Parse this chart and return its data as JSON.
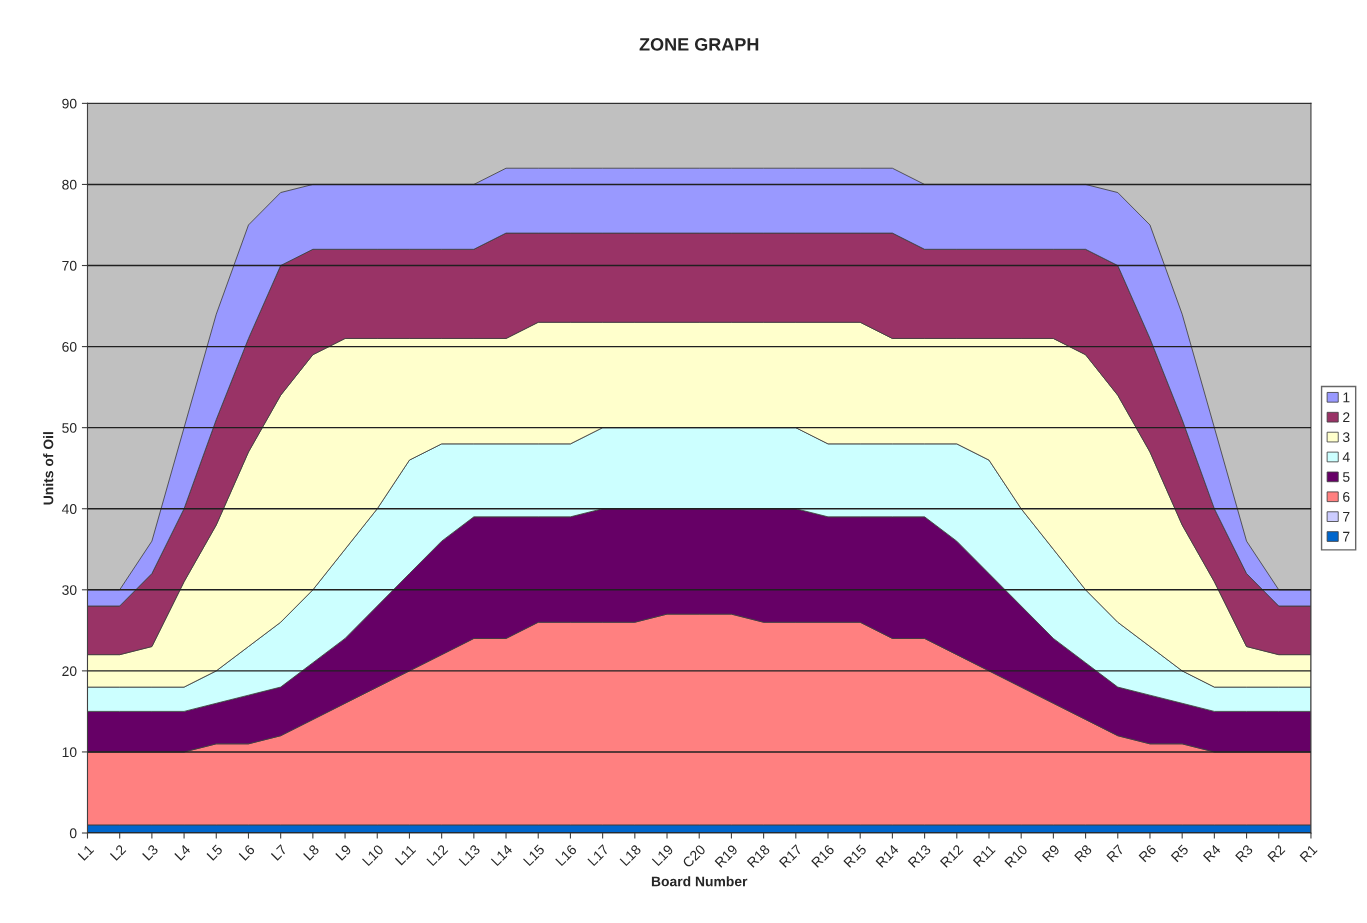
{
  "chart_data": {
    "type": "area",
    "stacked": true,
    "title": "ZONE GRAPH",
    "xlabel": "Board Number",
    "ylabel": "Units of Oil",
    "categories": [
      "L1",
      "L2",
      "L3",
      "L4",
      "L5",
      "L6",
      "L7",
      "L8",
      "L9",
      "L10",
      "L11",
      "L12",
      "L13",
      "L14",
      "L15",
      "L16",
      "L17",
      "L18",
      "L19",
      "C20",
      "R19",
      "R18",
      "R17",
      "R16",
      "R15",
      "R14",
      "R13",
      "R12",
      "R11",
      "R10",
      "R9",
      "R8",
      "R7",
      "R6",
      "R5",
      "R4",
      "R3",
      "R2",
      "R1"
    ],
    "series": [
      {
        "name": "7",
        "color": "#0066cc",
        "values": [
          1,
          1,
          1,
          1,
          1,
          1,
          1,
          1,
          1,
          1,
          1,
          1,
          1,
          1,
          1,
          1,
          1,
          1,
          1,
          1,
          1,
          1,
          1,
          1,
          1,
          1,
          1,
          1,
          1,
          1,
          1,
          1,
          1,
          1,
          1,
          1,
          1,
          1,
          1
        ]
      },
      {
        "name": "7",
        "color": "#ccccff",
        "values": [
          null,
          null,
          null,
          null,
          null,
          null,
          null,
          null,
          null,
          null,
          null,
          null,
          null,
          null,
          null,
          null,
          null,
          null,
          null,
          null,
          null,
          null,
          null,
          null,
          null,
          null,
          null,
          null,
          null,
          null,
          null,
          null,
          null,
          null,
          null,
          null,
          null,
          null,
          null
        ]
      },
      {
        "name": "6",
        "color": "#ff8080",
        "values": [
          9,
          9,
          9,
          9,
          10,
          10,
          11,
          13,
          15,
          17,
          19,
          21,
          23,
          23,
          25,
          25,
          25,
          25,
          26,
          26,
          26,
          25,
          25,
          25,
          25,
          23,
          23,
          21,
          19,
          17,
          15,
          13,
          11,
          10,
          10,
          9,
          9,
          9,
          9
        ]
      },
      {
        "name": "5",
        "color": "#660066",
        "values": [
          5,
          5,
          5,
          5,
          5,
          6,
          6,
          7,
          8,
          10,
          12,
          14,
          15,
          15,
          13,
          13,
          14,
          14,
          13,
          13,
          13,
          14,
          14,
          13,
          13,
          15,
          15,
          14,
          12,
          10,
          8,
          7,
          6,
          6,
          5,
          5,
          5,
          5,
          5
        ]
      },
      {
        "name": "4",
        "color": "#ccffff",
        "values": [
          3,
          3,
          3,
          3,
          4,
          6,
          8,
          9,
          11,
          12,
          14,
          12,
          9,
          9,
          9,
          9,
          10,
          10,
          10,
          10,
          10,
          10,
          10,
          9,
          9,
          9,
          9,
          12,
          14,
          12,
          11,
          9,
          8,
          6,
          4,
          3,
          3,
          3,
          3
        ]
      },
      {
        "name": "3",
        "color": "#ffffcc",
        "values": [
          4,
          4,
          5,
          13,
          18,
          24,
          28,
          29,
          26,
          21,
          15,
          13,
          13,
          13,
          15,
          15,
          13,
          13,
          13,
          13,
          13,
          13,
          13,
          15,
          15,
          13,
          13,
          13,
          15,
          21,
          26,
          29,
          28,
          24,
          18,
          13,
          5,
          4,
          4
        ]
      },
      {
        "name": "2",
        "color": "#993366",
        "values": [
          6,
          6,
          9,
          9,
          13,
          14,
          16,
          13,
          11,
          11,
          11,
          11,
          11,
          13,
          11,
          11,
          11,
          11,
          11,
          11,
          11,
          11,
          11,
          11,
          11,
          13,
          11,
          11,
          11,
          11,
          11,
          13,
          16,
          14,
          13,
          9,
          9,
          6,
          6
        ]
      },
      {
        "name": "1",
        "color": "#9999ff",
        "values": [
          2,
          2,
          4,
          10,
          13,
          14,
          9,
          8,
          8,
          8,
          8,
          8,
          8,
          8,
          8,
          8,
          8,
          8,
          8,
          8,
          8,
          8,
          8,
          8,
          8,
          8,
          8,
          8,
          8,
          8,
          8,
          8,
          9,
          14,
          13,
          10,
          4,
          2,
          2
        ]
      }
    ],
    "ylim": [
      0,
      90
    ],
    "yticks": [
      0,
      10,
      20,
      30,
      40,
      50,
      60,
      70,
      80,
      90
    ],
    "grid": "y",
    "legend": "right"
  }
}
